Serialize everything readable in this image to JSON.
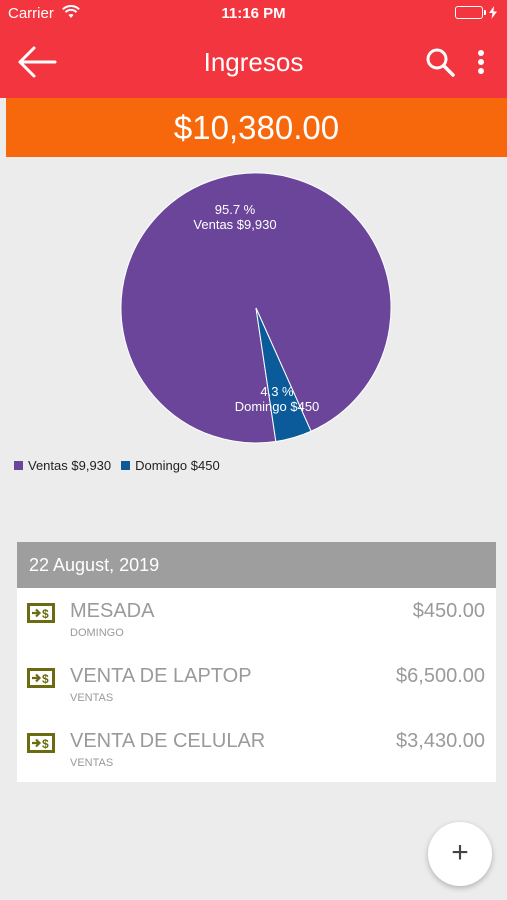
{
  "status_bar": {
    "carrier": "Carrier",
    "time": "11:16 PM",
    "icons": [
      "wifi-icon",
      "battery-icon",
      "charging-icon"
    ]
  },
  "app_bar": {
    "title": "Ingresos",
    "back_icon": "arrow-left-icon",
    "search_icon": "search-icon",
    "more_icon": "more-vertical-icon",
    "background": "#f2353e"
  },
  "total": {
    "amount": "$10,380.00",
    "background": "#f6680b"
  },
  "chart_data": {
    "type": "pie",
    "categories": [
      "Ventas",
      "Domingo"
    ],
    "values": [
      9930,
      450
    ],
    "percent_labels": [
      "95.7 %",
      "4.3 %"
    ],
    "value_labels": [
      "Ventas $9,930",
      "Domingo $450"
    ],
    "colors": [
      "#6b4599",
      "#0b5a9a"
    ],
    "legend": [
      "Ventas $9,930",
      "Domingo $450"
    ],
    "legend_position": "bottom-left"
  },
  "list": {
    "date_header": "22 August, 2019",
    "items": [
      {
        "name": "MESADA",
        "category": "DOMINGO",
        "amount": "$450.00",
        "icon": "money-income-icon"
      },
      {
        "name": "VENTA DE LAPTOP",
        "category": "VENTAS",
        "amount": "$6,500.00",
        "icon": "money-income-icon"
      },
      {
        "name": "VENTA DE CELULAR",
        "category": "VENTAS",
        "amount": "$3,430.00",
        "icon": "money-income-icon"
      }
    ],
    "icon_color": "#6b6b0f"
  },
  "fab": {
    "label": "+",
    "icon": "plus-icon"
  }
}
